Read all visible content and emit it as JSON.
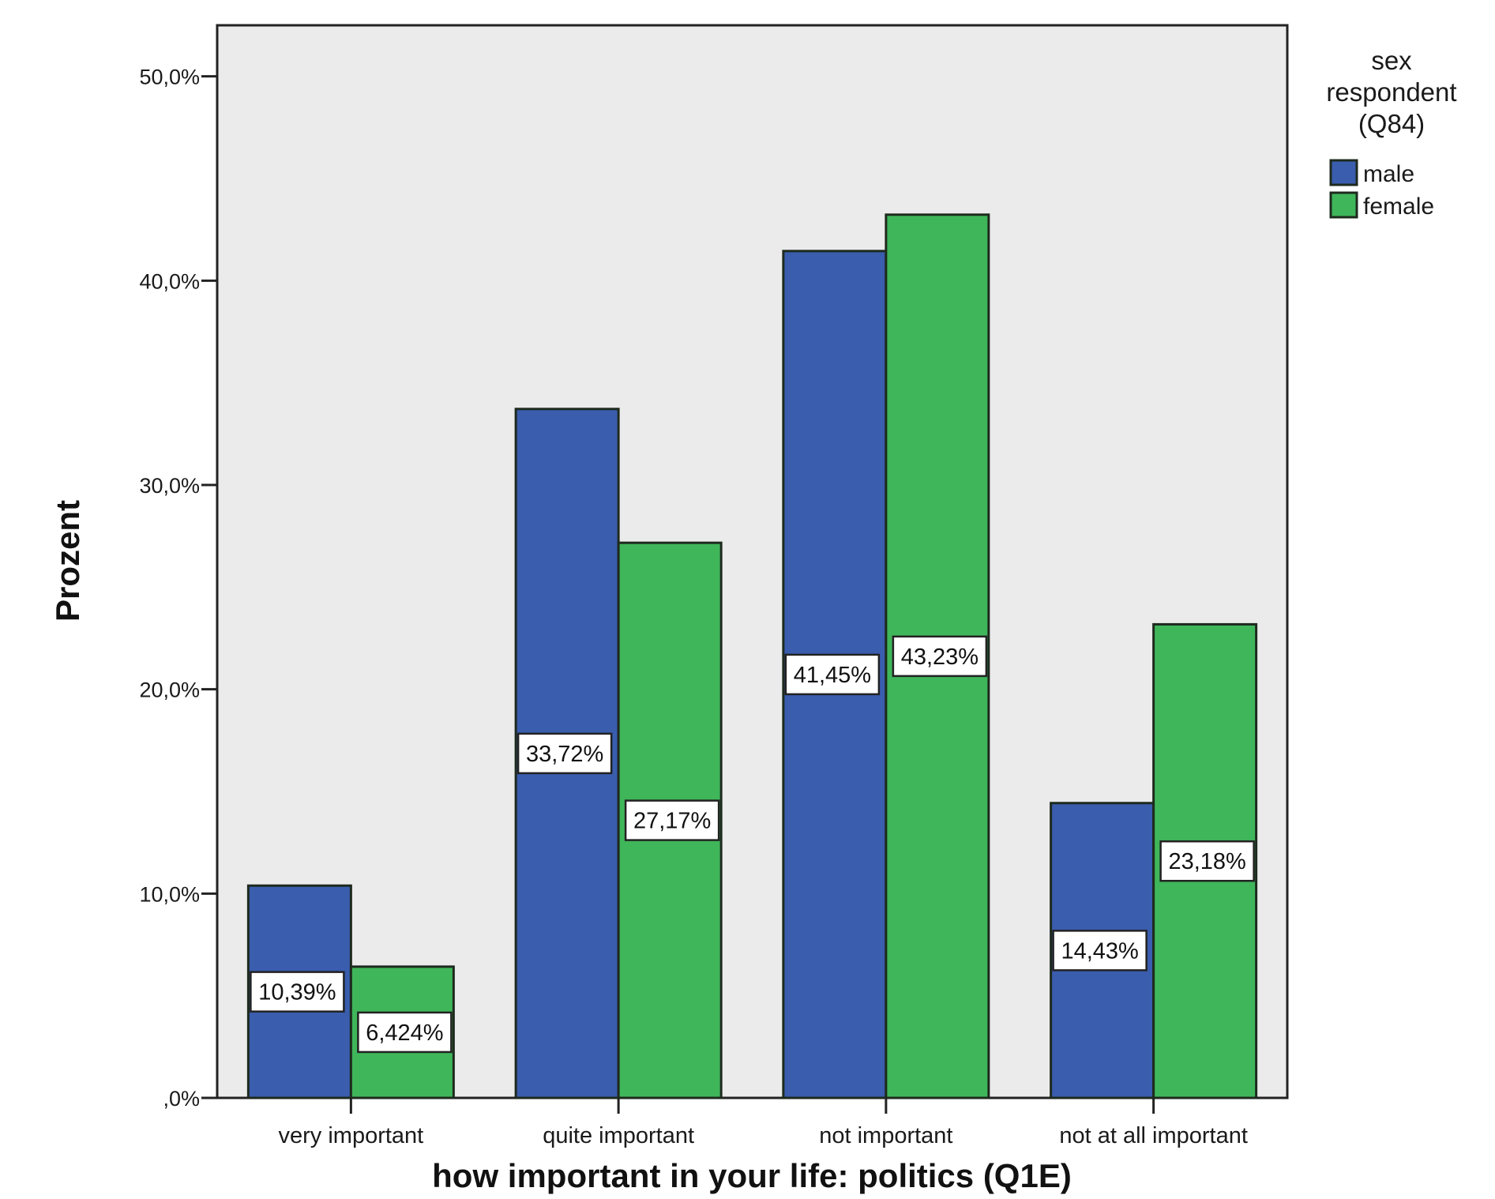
{
  "chart_data": {
    "type": "bar",
    "title": "",
    "xlabel": "how important in your life: politics (Q1E)",
    "ylabel": "Prozent",
    "ylim": [
      0,
      52.5
    ],
    "yticks": [
      ",0%",
      "10,0%",
      "20,0%",
      "30,0%",
      "40,0%",
      "50,0%"
    ],
    "ytick_values": [
      0,
      10,
      20,
      30,
      40,
      50
    ],
    "categories": [
      "very important",
      "quite important",
      "not important",
      "not at all important"
    ],
    "series": [
      {
        "name": "male",
        "color": "#3a5dae",
        "values": [
          10.39,
          33.72,
          41.45,
          14.43
        ],
        "labels": [
          "10,39%",
          "33,72%",
          "41,45%",
          "14,43%"
        ]
      },
      {
        "name": "female",
        "color": "#3fb65a",
        "values": [
          6.424,
          27.17,
          43.23,
          23.18
        ],
        "labels": [
          "6,424%",
          "27,17%",
          "43,23%",
          "23,18%"
        ]
      }
    ],
    "legend": {
      "title": [
        "sex",
        "respondent",
        "(Q84)"
      ],
      "placement": "right"
    },
    "grid": false,
    "plot_background": "#ebebeb"
  }
}
